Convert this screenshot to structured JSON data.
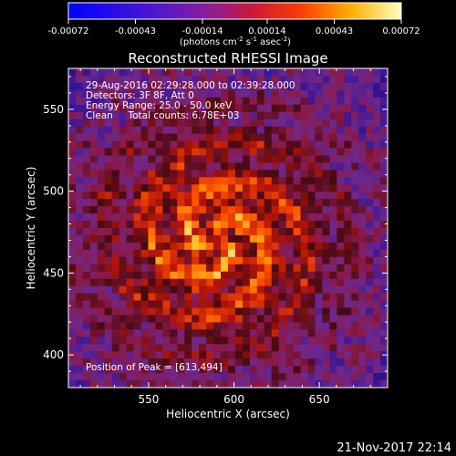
{
  "chart_data": {
    "type": "heatmap",
    "title": "Reconstructed RHESSI Image",
    "xlabel": "Heliocentric X (arcsec)",
    "ylabel": "Heliocentric Y (arcsec)",
    "xlim": [
      503,
      690
    ],
    "ylim": [
      380,
      575
    ],
    "x_ticks": [
      550,
      600,
      650
    ],
    "y_ticks": [
      400,
      450,
      500,
      550
    ],
    "colorbar": {
      "ticks": [
        "-0.00072",
        "-0.00043",
        "-0.00014",
        "0.00014",
        "0.00043",
        "0.00072"
      ],
      "range": [
        -0.00072,
        0.00072
      ],
      "label_main": "(photons cm",
      "label_sup1": "-2",
      "label_mid1": " s",
      "label_sup2": "-1",
      "label_mid2": " asec",
      "label_sup3": "-2",
      "label_end": ")"
    },
    "annotations": {
      "time_range": "29-Aug-2016 02:29:28.000 to 02:39:28.000",
      "detectors": "Detectors: 3F 8F, Att 0",
      "energy_range": "Energy Range: 25.0 - 50.0 keV",
      "clean_counts": "Clean     Total counts: 6.78E+03",
      "peak_position": "Position of Peak = [613,494]"
    },
    "peak": [
      613,
      494
    ],
    "source_center": [
      590,
      470
    ]
  },
  "footer": {
    "timestamp": "21-Nov-2017 22:14"
  }
}
